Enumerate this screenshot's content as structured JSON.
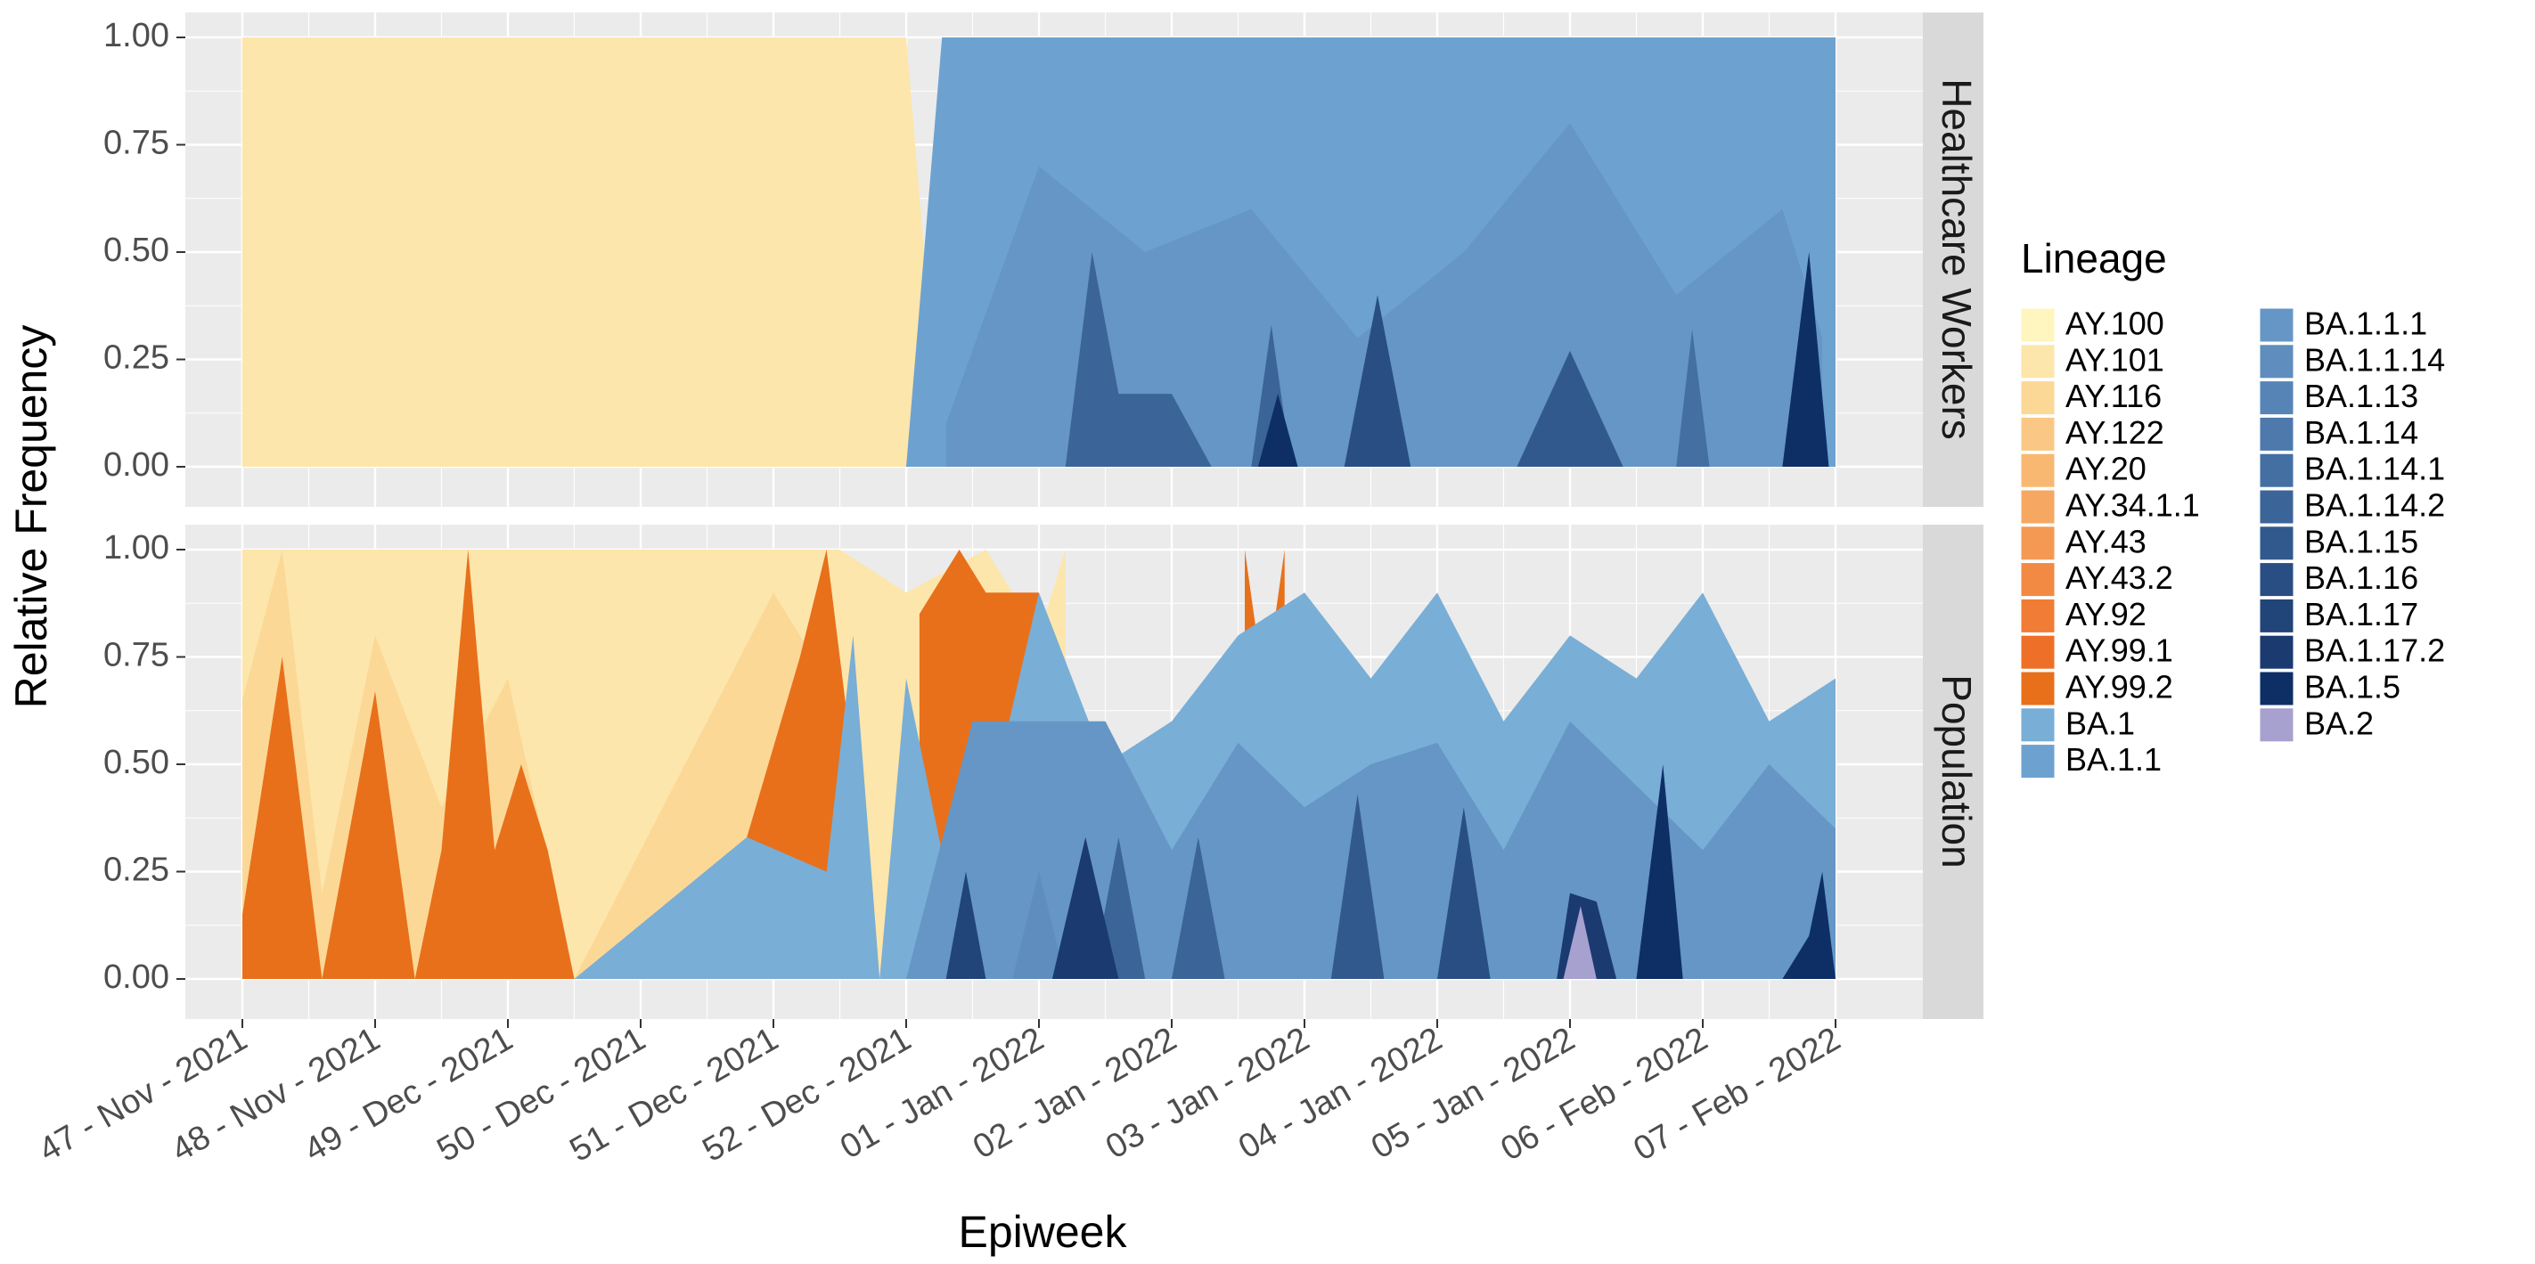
{
  "chart_data": {
    "type": "area",
    "stacked": true,
    "normalized": true,
    "xlabel": "Epiweek",
    "ylabel": "Relative Frequency",
    "ylim": [
      0,
      1
    ],
    "y_ticks": [
      "0.00",
      "0.25",
      "0.50",
      "0.75",
      "1.00"
    ],
    "x_ticks": [
      "47 - Nov - 2021",
      "48 - Nov - 2021",
      "49 - Dec - 2021",
      "50 - Dec - 2021",
      "51 - Dec - 2021",
      "52 - Dec - 2021",
      "01 - Jan - 2022",
      "02 - Jan - 2022",
      "03 - Jan - 2022",
      "04 - Jan - 2022",
      "05 - Jan - 2022",
      "06 - Feb - 2022",
      "07 - Feb - 2022"
    ],
    "xlim": [
      0,
      12
    ],
    "grid": true,
    "legend_placement": "right",
    "legend_title": "Lineage",
    "legend": [
      {
        "name": "AY.100",
        "color": "#FFF5BE"
      },
      {
        "name": "AY.101",
        "color": "#FDE6AB"
      },
      {
        "name": "AY.116",
        "color": "#FCD897"
      },
      {
        "name": "AY.122",
        "color": "#FAC884"
      },
      {
        "name": "AY.20",
        "color": "#F8B872"
      },
      {
        "name": "AY.34.1.1",
        "color": "#F6A862"
      },
      {
        "name": "AY.43",
        "color": "#F49954"
      },
      {
        "name": "AY.43.2",
        "color": "#F28A44"
      },
      {
        "name": "AY.92",
        "color": "#F07C35"
      },
      {
        "name": "AY.99.1",
        "color": "#EE7028"
      },
      {
        "name": "AY.99.2",
        "color": "#E8701A"
      },
      {
        "name": "BA.1",
        "color": "#79AED6"
      },
      {
        "name": "BA.1.1",
        "color": "#6DA2D0"
      },
      {
        "name": "BA.1.1.1",
        "color": "#6596C5"
      },
      {
        "name": "BA.1.1.14",
        "color": "#5E8DBE"
      },
      {
        "name": "BA.1.13",
        "color": "#5684B7"
      },
      {
        "name": "BA.1.14",
        "color": "#4D79AD"
      },
      {
        "name": "BA.1.14.1",
        "color": "#446FA3"
      },
      {
        "name": "BA.1.14.2",
        "color": "#3B6498"
      },
      {
        "name": "BA.1.15",
        "color": "#32598D"
      },
      {
        "name": "BA.1.16",
        "color": "#294E83"
      },
      {
        "name": "BA.1.17",
        "color": "#214479"
      },
      {
        "name": "BA.1.17.2",
        "color": "#1A3A70"
      },
      {
        "name": "BA.1.5",
        "color": "#0E2F66"
      },
      {
        "name": "BA.2",
        "color": "#A6A1CF"
      }
    ],
    "facets": [
      {
        "label": "Healthcare Workers",
        "series": [
          {
            "name": "AY.101",
            "points": [
              [
                0,
                1
              ],
              [
                5,
                1
              ],
              [
                5.27,
                0
              ]
            ]
          },
          {
            "name": "BA.1.1",
            "points": [
              [
                5,
                0
              ],
              [
                5.27,
                1
              ],
              [
                12,
                1
              ]
            ]
          },
          {
            "name": "BA.1.1.1",
            "points": [
              [
                5.3,
                0.1
              ],
              [
                6,
                0.7
              ],
              [
                6.8,
                0.5
              ],
              [
                7.6,
                0.6
              ],
              [
                8.4,
                0.3
              ],
              [
                9.2,
                0.5
              ],
              [
                10,
                0.8
              ],
              [
                10.8,
                0.4
              ],
              [
                11.6,
                0.6
              ],
              [
                11.9,
                0.3
              ]
            ]
          },
          {
            "name": "BA.1.14.2",
            "points": [
              [
                6.2,
                0
              ],
              [
                6.4,
                0.5
              ],
              [
                6.6,
                0.17
              ],
              [
                7,
                0.17
              ],
              [
                7.3,
                0
              ]
            ]
          },
          {
            "name": "BA.1.14.2",
            "points": [
              [
                7.6,
                0
              ],
              [
                7.75,
                0.33
              ],
              [
                7.9,
                0
              ]
            ]
          },
          {
            "name": "BA.1.16",
            "points": [
              [
                8.3,
                0
              ],
              [
                8.55,
                0.4
              ],
              [
                8.8,
                0
              ]
            ]
          },
          {
            "name": "BA.1.15",
            "points": [
              [
                9.6,
                0
              ],
              [
                10.0,
                0.27
              ],
              [
                10.4,
                0
              ]
            ]
          },
          {
            "name": "BA.1.14.1",
            "points": [
              [
                10.8,
                0
              ],
              [
                10.92,
                0.32
              ],
              [
                11.05,
                0
              ]
            ]
          },
          {
            "name": "BA.1.5",
            "points": [
              [
                7.65,
                0
              ],
              [
                7.8,
                0.17
              ],
              [
                7.95,
                0
              ]
            ]
          },
          {
            "name": "BA.1.5",
            "points": [
              [
                11.6,
                0
              ],
              [
                11.8,
                0.5
              ],
              [
                11.95,
                0
              ]
            ]
          }
        ]
      },
      {
        "label": "Population",
        "series": [
          {
            "name": "AY.101",
            "points": [
              [
                0,
                1
              ],
              [
                4.5,
                1
              ],
              [
                5,
                0.9
              ],
              [
                5.6,
                1
              ],
              [
                6,
                0.8
              ],
              [
                6.2,
                1
              ]
            ]
          },
          {
            "name": "AY.116",
            "points": [
              [
                0,
                0.65
              ],
              [
                0.3,
                1
              ],
              [
                0.6,
                0.2
              ],
              [
                1,
                0.8
              ],
              [
                1.5,
                0.4
              ],
              [
                2,
                0.7
              ],
              [
                2.5,
                0
              ],
              [
                4.0,
                0.9
              ],
              [
                4.3,
                0.75
              ],
              [
                4.5,
                0
              ]
            ]
          },
          {
            "name": "AY.99.2",
            "points": [
              [
                0,
                0.15
              ],
              [
                0.3,
                0.75
              ],
              [
                0.6,
                0
              ],
              [
                0.9,
                0.5
              ],
              [
                1.0,
                0.67
              ],
              [
                1.3,
                0
              ],
              [
                1.5,
                0.3
              ],
              [
                1.7,
                1.0
              ],
              [
                1.9,
                0.3
              ],
              [
                2.1,
                0.5
              ],
              [
                2.3,
                0.3
              ],
              [
                2.5,
                0
              ]
            ]
          },
          {
            "name": "AY.99.2",
            "points": [
              [
                3.8,
                0.33
              ],
              [
                4.2,
                0.75
              ],
              [
                4.4,
                1.0
              ],
              [
                4.6,
                0.5
              ]
            ]
          },
          {
            "name": "AY.99.2",
            "points": [
              [
                5.1,
                0.85
              ],
              [
                5.4,
                1.0
              ],
              [
                5.6,
                0.9
              ],
              [
                6.0,
                0.9
              ]
            ]
          },
          {
            "name": "AY.99.2",
            "points": [
              [
                7.55,
                1.0
              ],
              [
                7.7,
                0.67
              ],
              [
                7.85,
                1.0
              ]
            ]
          },
          {
            "name": "BA.1",
            "points": [
              [
                2.5,
                0
              ],
              [
                3.8,
                0.33
              ],
              [
                4.4,
                0.25
              ],
              [
                4.6,
                0.8
              ],
              [
                4.8,
                0
              ],
              [
                5.0,
                0.7
              ],
              [
                5.4,
                0.1
              ],
              [
                6,
                0.9
              ],
              [
                6.5,
                0.5
              ],
              [
                7,
                0.6
              ],
              [
                7.5,
                0.8
              ],
              [
                8,
                0.9
              ],
              [
                8.5,
                0.7
              ],
              [
                9,
                0.9
              ],
              [
                9.5,
                0.6
              ],
              [
                10,
                0.8
              ],
              [
                10.5,
                0.7
              ],
              [
                11,
                0.9
              ],
              [
                11.5,
                0.6
              ],
              [
                12,
                0.7
              ]
            ]
          },
          {
            "name": "BA.1.1.1",
            "points": [
              [
                5,
                0
              ],
              [
                5.5,
                0.6
              ],
              [
                6.5,
                0.6
              ],
              [
                7,
                0.3
              ],
              [
                7.5,
                0.55
              ],
              [
                8,
                0.4
              ],
              [
                8.5,
                0.5
              ],
              [
                9,
                0.55
              ],
              [
                9.5,
                0.3
              ],
              [
                10,
                0.6
              ],
              [
                10.5,
                0.45
              ],
              [
                11,
                0.3
              ],
              [
                11.5,
                0.5
              ],
              [
                12,
                0.35
              ]
            ]
          },
          {
            "name": "BA.1.1.14",
            "points": [
              [
                5.8,
                0
              ],
              [
                6.0,
                0.25
              ],
              [
                6.2,
                0
              ]
            ]
          },
          {
            "name": "BA.1.14.2",
            "points": [
              [
                6.4,
                0
              ],
              [
                6.6,
                0.33
              ],
              [
                6.8,
                0
              ]
            ]
          },
          {
            "name": "BA.1.14.2",
            "points": [
              [
                7.0,
                0
              ],
              [
                7.2,
                0.33
              ],
              [
                7.4,
                0
              ]
            ]
          },
          {
            "name": "BA.1.15",
            "points": [
              [
                8.2,
                0
              ],
              [
                8.4,
                0.43
              ],
              [
                8.6,
                0
              ]
            ]
          },
          {
            "name": "BA.1.16",
            "points": [
              [
                9.0,
                0
              ],
              [
                9.2,
                0.4
              ],
              [
                9.4,
                0
              ]
            ]
          },
          {
            "name": "BA.1.17",
            "points": [
              [
                5.3,
                0
              ],
              [
                5.45,
                0.25
              ],
              [
                5.6,
                0
              ]
            ]
          },
          {
            "name": "BA.1.17.2",
            "points": [
              [
                6.1,
                0
              ],
              [
                6.35,
                0.33
              ],
              [
                6.6,
                0
              ]
            ]
          },
          {
            "name": "BA.1.17.2",
            "points": [
              [
                9.9,
                0
              ],
              [
                10.0,
                0.2
              ],
              [
                10.2,
                0.18
              ],
              [
                10.35,
                0
              ]
            ]
          },
          {
            "name": "BA.1.5",
            "points": [
              [
                10.5,
                0
              ],
              [
                10.7,
                0.5
              ],
              [
                10.85,
                0
              ]
            ]
          },
          {
            "name": "BA.1.5",
            "points": [
              [
                11.6,
                0
              ],
              [
                11.8,
                0.1
              ],
              [
                11.9,
                0.25
              ],
              [
                12,
                0
              ]
            ]
          },
          {
            "name": "BA.2",
            "points": [
              [
                9.95,
                0
              ],
              [
                10.08,
                0.17
              ],
              [
                10.2,
                0
              ]
            ]
          }
        ]
      }
    ]
  }
}
